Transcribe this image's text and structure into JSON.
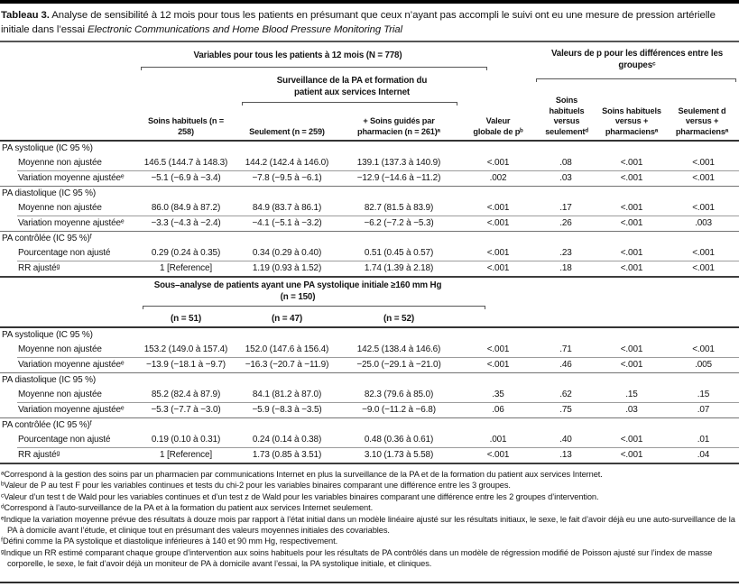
{
  "colors": {
    "text": "#141414",
    "rule_heavy": "#333333",
    "rule_light": "#9c9c9c",
    "top_bar": "#000000"
  },
  "table": {
    "title_label": "Tableau 3.",
    "title_text": " Analyse de sensibilité à 12 mois pour tous les patients en présumant que ceux n’ayant pas accompli le suivi ont eu une mesure de pression artérielle initiale dans l’essai ",
    "title_italic": "Electronic Communications and Home Blood Pressure Monitoring Trial",
    "header": {
      "group_all": "Variables pour tous les patients à 12 mois (N = 778)",
      "group_intervention": "Surveillance de la PA et formation du patient aux services Internet",
      "group_pvalues": "Valeurs de p pour les différences entre les groupesᶜ",
      "col_usual": "Soins habituels (n = 258)",
      "col_only": "Seulement (n = 259)",
      "col_pharm": "+ Soins guidés par pharmacien (n = 261)ᵃ",
      "col_global_p": "Valeur globale de pᵇ",
      "col_usual_vs_only": "Soins habituels versus seulementᵈ",
      "col_usual_vs_pharm": "Soins habituels versus + pharmaciensᵃ",
      "col_only_vs_pharm": "Seulement d versus + pharmaciensᵃ"
    },
    "rows_main": [
      {
        "type": "section",
        "label": "PA systolique (IC 95 %)",
        "rule": "none"
      },
      {
        "type": "data",
        "label": "Moyenne non ajustée",
        "values": [
          "146.5 (144.7 à 148.3)",
          "144.2 (142.4 à 146.0)",
          "139.1 (137.3 à 140.9)",
          "<.001",
          ".08",
          "<.001",
          "<.001"
        ],
        "rule": "indent"
      },
      {
        "type": "data",
        "label": "Variation moyenne ajustéeᵉ",
        "values": [
          "−5.1 (−6.9 à −3.4)",
          "−7.8 (−9.5 à −6.1)",
          "−12.9 (−14.6 à −11.2)",
          ".002",
          ".03",
          "<.001",
          "<.001"
        ],
        "rule": "full"
      },
      {
        "type": "section",
        "label": "PA diastolique (IC 95 %)",
        "rule": "none"
      },
      {
        "type": "data",
        "label": "Moyenne non ajustée",
        "values": [
          "86.0 (84.9 à 87.2)",
          "84.9 (83.7 à 86.1)",
          "82.7 (81.5 à 83.9)",
          "<.001",
          ".17",
          "<.001",
          "<.001"
        ],
        "rule": "indent"
      },
      {
        "type": "data",
        "label": "Variation moyenne ajustéeᵉ",
        "values": [
          "−3.3 (−4.3 à −2.4)",
          "−4.1 (−5.1 à −3.2)",
          "−6.2 (−7.2 à −5.3)",
          "<.001",
          ".26",
          "<.001",
          ".003"
        ],
        "rule": "full"
      },
      {
        "type": "section",
        "label": "PA contrôlée (IC 95 %)ᶠ",
        "rule": "none"
      },
      {
        "type": "data",
        "label": "Pourcentage non ajusté",
        "values": [
          "0.29 (0.24 à 0.35)",
          "0.34 (0.29 à 0.40)",
          "0.51 (0.45 à 0.57)",
          "<.001",
          ".23",
          "<.001",
          "<.001"
        ],
        "rule": "indent"
      },
      {
        "type": "data",
        "label": "RR ajustéᵍ",
        "values": [
          "1 [Reference]",
          "1.19 (0.93 à 1.52)",
          "1.74 (1.39 à 2.18)",
          "<.001",
          ".18",
          "<.001",
          "<.001"
        ],
        "rule": "heavy"
      }
    ],
    "subheader": {
      "title": "Sous–analyse de patients ayant une PA systolique initiale ≥160 mm Hg (n = 150)",
      "cols": [
        "(n = 51)",
        "(n = 47)",
        "(n = 52)"
      ]
    },
    "rows_sub": [
      {
        "type": "section",
        "label": "PA systolique (IC 95 %)",
        "rule": "none"
      },
      {
        "type": "data",
        "label": "Moyenne non ajustée",
        "values": [
          "153.2 (149.0 à 157.4)",
          "152.0 (147.6 à 156.4)",
          "142.5 (138.4 à 146.6)",
          "<.001",
          ".71",
          "<.001",
          "<.001"
        ],
        "rule": "indent"
      },
      {
        "type": "data",
        "label": "Variation moyenne ajustéeᵉ",
        "values": [
          "−13.9 (−18.1 à −9.7)",
          "−16.3 (−20.7 à −11.9)",
          "−25.0 (−29.1 à −21.0)",
          "<.001",
          ".46",
          "<.001",
          ".005"
        ],
        "rule": "full"
      },
      {
        "type": "section",
        "label": "PA diastolique (IC 95 %)",
        "rule": "none"
      },
      {
        "type": "data",
        "label": "Moyenne non ajustée",
        "values": [
          "85.2 (82.4 à 87.9)",
          "84.1 (81.2 à 87.0)",
          "82.3 (79.6 à 85.0)",
          ".35",
          ".62",
          ".15",
          ".15"
        ],
        "rule": "indent"
      },
      {
        "type": "data",
        "label": "Variation moyenne ajustéeᵉ",
        "values": [
          "−5.3 (−7.7 à −3.0)",
          "−5.9 (−8.3 à −3.5)",
          "−9.0 (−11.2 à −6.8)",
          ".06",
          ".75",
          ".03",
          ".07"
        ],
        "rule": "full"
      },
      {
        "type": "section",
        "label": "PA contrôlée (IC 95 %)ᶠ",
        "rule": "none"
      },
      {
        "type": "data",
        "label": "Pourcentage non ajusté",
        "values": [
          "0.19 (0.10 à 0.31)",
          "0.24 (0.14 à 0.38)",
          "0.48 (0.36 à 0.61)",
          ".001",
          ".40",
          "<.001",
          ".01"
        ],
        "rule": "indent"
      },
      {
        "type": "data",
        "label": "RR ajustéᵍ",
        "values": [
          "1 [Reference]",
          "1.73 (0.85 à 3.51)",
          "3.10 (1.73 à 5.58)",
          "<.001",
          ".13",
          "<.001",
          ".04"
        ],
        "rule": "heavy"
      }
    ],
    "footnotes": [
      {
        "mark": "ᵃ",
        "text": "Correspond à la gestion des soins par un pharmacien par communications Internet en plus la surveillance de la PA et de la formation du patient aux services Internet."
      },
      {
        "mark": "ᵇ",
        "text": "Valeur de P au test F pour les variables continues et tests du chi-2 pour les variables binaires comparant une différence entre les 3 groupes."
      },
      {
        "mark": "ᶜ",
        "text": "Valeur d’un test t de Wald pour les variables continues et d’un test z de Wald pour les variables binaires comparant une différence entre les 2 groupes d’intervention."
      },
      {
        "mark": "ᵈ",
        "text": "Correspond à l’auto-surveillance de la PA et à la formation du patient aux services Internet seulement."
      },
      {
        "mark": "ᵉ",
        "text": "Indique la variation moyenne prévue des résultats à douze mois par rapport à l’état initial dans un modèle linéaire ajusté sur les résultats initiaux, le sexe, le fait d’avoir déjà eu une auto-surveillance de la PA à domicile avant l’étude, et clinique tout en présumant des valeurs moyennes initiales des covariables."
      },
      {
        "mark": "ᶠ",
        "text": "Défini comme la PA systolique et diastolique inférieures à 140 et 90 mm Hg, respectivement."
      },
      {
        "mark": "ᵍ",
        "text": "Indique un RR estimé comparant chaque groupe d’intervention aux soins habituels pour les résultats de PA contrôlés dans un modèle de régression modifié de Poisson ajusté sur l’index de masse corporelle, le sexe, le fait d’avoir déjà un moniteur de PA à domicile avant l’essai, la PA systolique initiale, et cliniques."
      }
    ]
  }
}
